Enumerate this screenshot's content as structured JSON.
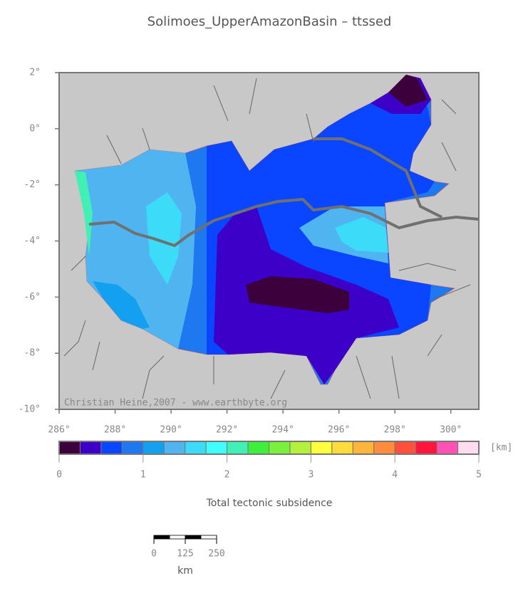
{
  "chart_data": {
    "type": "map",
    "title": "Solimoes_UpperAmazonBasin – ttssed",
    "xlim": [
      286,
      301
    ],
    "ylim": [
      -10,
      2
    ],
    "xticks": [
      {
        "value": 286,
        "label": "286°"
      },
      {
        "value": 288,
        "label": "288°"
      },
      {
        "value": 290,
        "label": "290°"
      },
      {
        "value": 292,
        "label": "292°"
      },
      {
        "value": 294,
        "label": "294°"
      },
      {
        "value": 296,
        "label": "296°"
      },
      {
        "value": 298,
        "label": "298°"
      },
      {
        "value": 300,
        "label": "300°"
      }
    ],
    "yticks": [
      {
        "value": 2,
        "label": "2°"
      },
      {
        "value": 0,
        "label": "0°"
      },
      {
        "value": -2,
        "label": "-2°"
      },
      {
        "value": -4,
        "label": "-4°"
      },
      {
        "value": -6,
        "label": "-6°"
      },
      {
        "value": -8,
        "label": "-8°"
      },
      {
        "value": -10,
        "label": "-10°"
      }
    ],
    "credit": "Christian Heine,2007 - www.earthbyte.org",
    "colorbar": {
      "lim": [
        0,
        5
      ],
      "ticks": [
        0,
        1,
        2,
        3,
        4,
        5
      ],
      "unit": "[km]",
      "label": "Total tectonic subsidence",
      "colors": [
        "#3c003c",
        "#3c00c8",
        "#0a46ff",
        "#1e78f0",
        "#14a0f0",
        "#50b4f0",
        "#3cdcf8",
        "#40ffff",
        "#40f0b4",
        "#3cf03c",
        "#78f03c",
        "#b4f03c",
        "#ffff3c",
        "#ffdc3c",
        "#ffb43c",
        "#ff8c3c",
        "#ff503c",
        "#ff143c",
        "#ff50b4",
        "#ffdcf0"
      ]
    },
    "scale_bar": {
      "lim": [
        0,
        250
      ],
      "ticks": [
        0,
        125,
        250
      ],
      "unit": "km"
    }
  }
}
